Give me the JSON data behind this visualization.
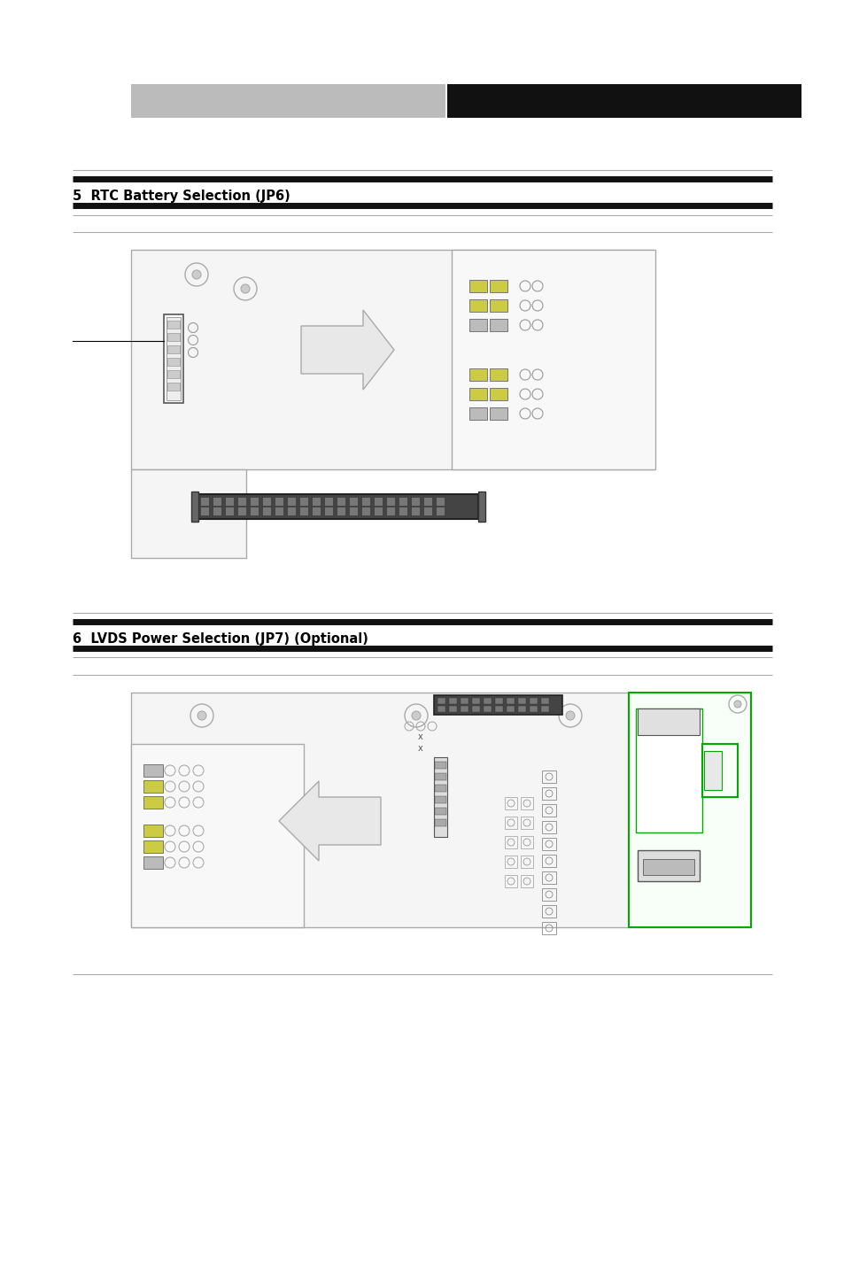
{
  "bg_color": "#ffffff",
  "header_gray": "#bbbbbb",
  "header_black": "#111111",
  "section1_title": "5  RTC Battery Selection (JP6)",
  "section2_title": "6  LVDS Power Selection (JP7) (Optional)"
}
